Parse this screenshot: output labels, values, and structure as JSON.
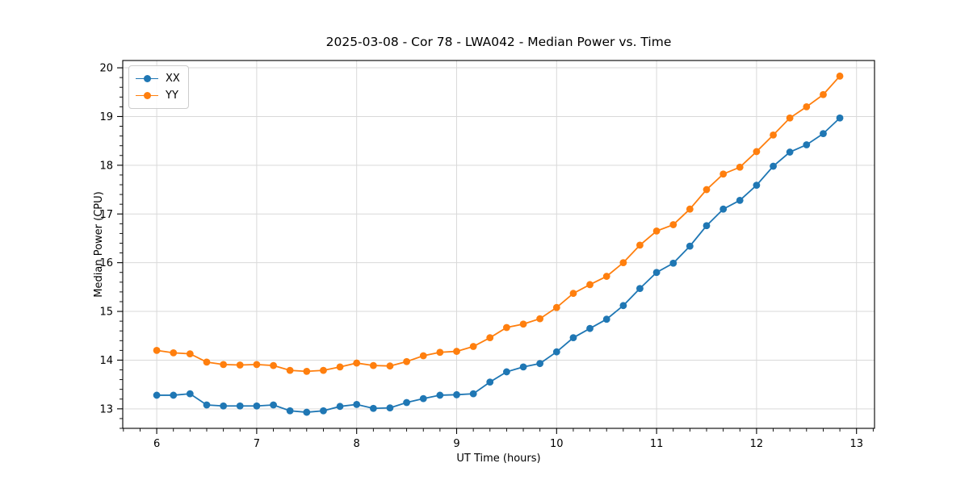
{
  "figure": {
    "title": "2025-03-08 - Cor 78 - LWA042 - Median Power vs. Time",
    "xlabel": "UT Time (hours)",
    "ylabel": "Median Power (CPU)"
  },
  "chart_data": {
    "type": "line",
    "title": "2025-03-08 - Cor 78 - LWA042 - Median Power vs. Time",
    "xlabel": "UT Time (hours)",
    "ylabel": "Median Power (CPU)",
    "grid": true,
    "legend_position": "upper left",
    "xlim": [
      5.66,
      13.18
    ],
    "ylim": [
      12.6,
      20.15
    ],
    "x_ticks": [
      6,
      7,
      8,
      9,
      10,
      11,
      12,
      13
    ],
    "y_ticks": [
      13,
      14,
      15,
      16,
      17,
      18,
      19,
      20
    ],
    "x_minor_step": 0.1667,
    "y_minor_step": 0.2,
    "x": [
      6.0,
      6.167,
      6.333,
      6.5,
      6.667,
      6.833,
      7.0,
      7.167,
      7.333,
      7.5,
      7.667,
      7.833,
      8.0,
      8.167,
      8.333,
      8.5,
      8.667,
      8.833,
      9.0,
      9.167,
      9.333,
      9.5,
      9.667,
      9.833,
      10.0,
      10.167,
      10.333,
      10.5,
      10.667,
      10.833,
      11.0,
      11.167,
      11.333,
      11.5,
      11.667,
      11.833,
      12.0,
      12.167,
      12.333,
      12.5,
      12.667,
      12.833
    ],
    "series": [
      {
        "name": "XX",
        "color": "#1f77b4",
        "values": [
          13.28,
          13.28,
          13.31,
          13.08,
          13.06,
          13.06,
          13.06,
          13.08,
          12.96,
          12.93,
          12.96,
          13.05,
          13.09,
          13.01,
          13.02,
          13.13,
          13.21,
          13.28,
          13.29,
          13.31,
          13.55,
          13.76,
          13.86,
          13.93,
          14.17,
          14.46,
          14.65,
          14.84,
          15.12,
          15.47,
          15.8,
          15.99,
          16.34,
          16.76,
          17.1,
          17.28,
          17.59,
          17.98,
          18.27,
          18.42,
          18.65,
          18.97
        ]
      },
      {
        "name": "YY",
        "color": "#ff7f0e",
        "values": [
          14.2,
          14.15,
          14.13,
          13.96,
          13.91,
          13.9,
          13.91,
          13.89,
          13.79,
          13.77,
          13.79,
          13.86,
          13.94,
          13.89,
          13.88,
          13.97,
          14.09,
          14.16,
          14.18,
          14.28,
          14.46,
          14.67,
          14.74,
          14.85,
          15.08,
          15.37,
          15.55,
          15.72,
          16.0,
          16.36,
          16.65,
          16.78,
          17.1,
          17.5,
          17.82,
          17.96,
          18.28,
          18.62,
          18.97,
          19.2,
          19.45,
          19.83
        ]
      }
    ],
    "axes_color": "#000000",
    "grid_color": "#d9d9d9",
    "tick_label_size": 13
  }
}
